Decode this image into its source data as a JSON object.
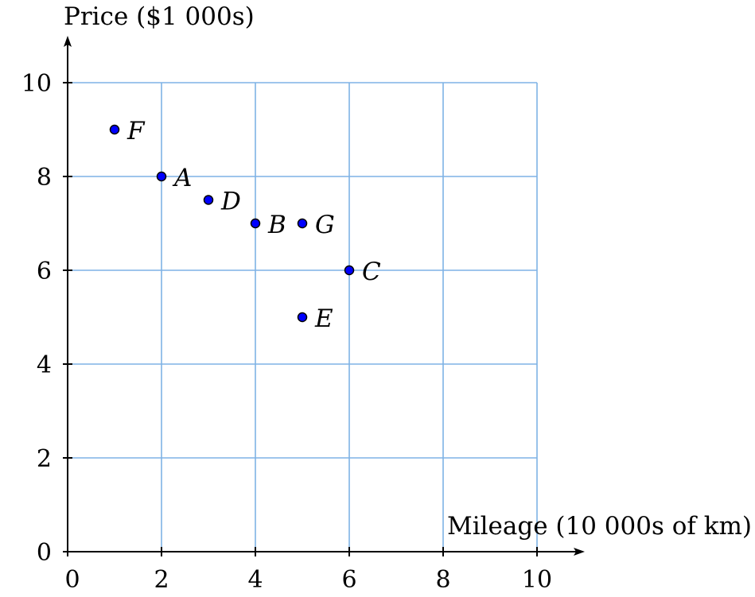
{
  "chart_data": {
    "type": "scatter",
    "title": "",
    "xlabel": "Mileage (10 000s of km)",
    "ylabel": "Price ($1 000s)",
    "xlim": [
      0,
      10
    ],
    "ylim": [
      0,
      10
    ],
    "xticks": [
      "0",
      "2",
      "4",
      "6",
      "8",
      "10"
    ],
    "yticks": [
      "0",
      "2",
      "4",
      "6",
      "8",
      "10"
    ],
    "grid": true,
    "grid_step": 2,
    "colors": {
      "grid": "#7fb2e5",
      "point_fill": "#0000ff",
      "point_stroke": "#000000"
    },
    "points": [
      {
        "label": "F",
        "x": 1,
        "y": 9
      },
      {
        "label": "A",
        "x": 2,
        "y": 8
      },
      {
        "label": "D",
        "x": 3,
        "y": 7.5
      },
      {
        "label": "B",
        "x": 4,
        "y": 7
      },
      {
        "label": "G",
        "x": 5,
        "y": 7
      },
      {
        "label": "C",
        "x": 6,
        "y": 6
      },
      {
        "label": "E",
        "x": 5,
        "y": 5
      }
    ]
  }
}
